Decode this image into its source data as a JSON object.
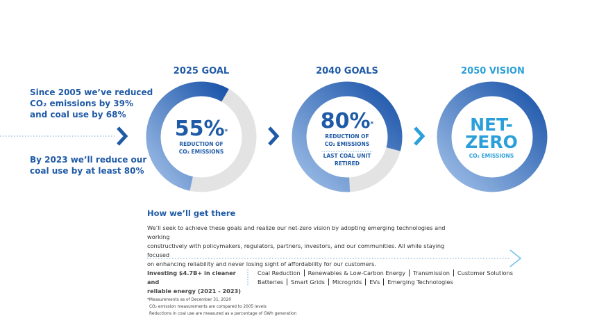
{
  "left_panel": {
    "stat_1": [
      "Since 2005 we’ve reduced",
      "CO₂ emissions by 39%",
      "and coal use by 68%"
    ],
    "stat_2": [
      "By 2023 we’ll reduce our",
      "coal use by at least 80%"
    ]
  },
  "goals": [
    {
      "heading": "2025 GOAL",
      "value": 55,
      "unit": "%",
      "note_mark": "*",
      "lines": [
        "REDUCTION OF",
        "CO₂ EMISSIONS"
      ]
    },
    {
      "heading": "2040 GOALS",
      "value": 80,
      "unit": "%",
      "note_mark": "*",
      "lines": [
        "REDUCTION OF",
        "CO₂ EMISSIONS"
      ],
      "extra_lines": [
        "LAST COAL UNIT",
        "RETIRED"
      ]
    },
    {
      "heading": "2050 VISION",
      "title_lines": [
        "NET-",
        "ZERO"
      ],
      "lines": [
        "CO₂ EMISSIONS"
      ]
    }
  ],
  "how": {
    "title": "How we’ll get there",
    "paragraph_lines": [
      "We’ll seek to achieve these goals and realize our net-zero vision by adopting emerging technologies and working",
      "constructively with policymakers, regulators, partners, investors, and our communities. All while staying focused",
      "on enhancing reliability and never losing sight of affordability for our customers."
    ],
    "investing_lines": [
      "Investing $4.7B+ in cleaner and",
      "reliable energy (2021 - 2023)"
    ],
    "categories": [
      [
        "Coal Reduction",
        "Renewables & Low-Carbon Energy",
        "Transmission",
        "Customer Solutions"
      ],
      [
        "Batteries",
        "Smart Grids",
        "Microgrids",
        "EVs",
        "Emerging Technologies"
      ]
    ]
  },
  "footnotes": [
    "*Measurements as of December 31, 2020",
    "CO₂ emission measurements are compared to 2005 levels",
    "Reductions in coal use are measured as a percentage of GWh generation"
  ]
}
